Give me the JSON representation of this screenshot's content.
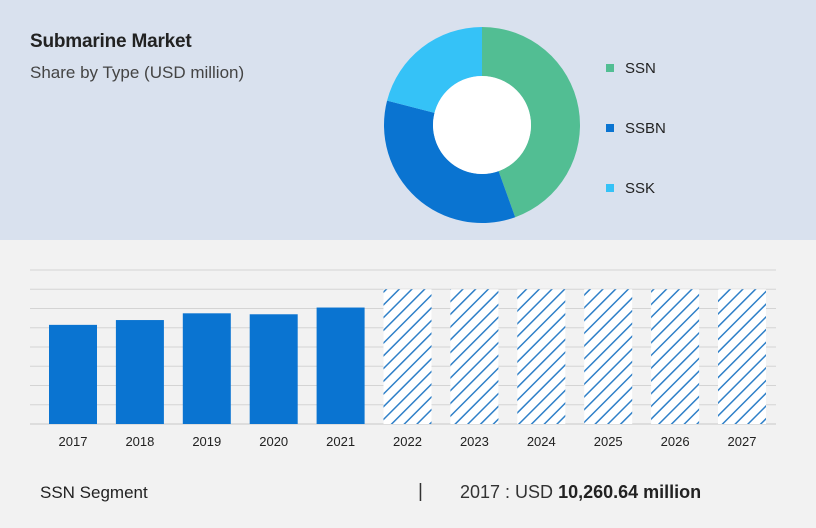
{
  "header": {
    "title": "Submarine Market",
    "subtitle": "Share by Type (USD million)"
  },
  "footer": {
    "segment_label": "SSN Segment",
    "separator": "|",
    "value_prefix": "2017 : USD",
    "value_amount": "10,260.64 million"
  },
  "colors": {
    "top_background": "#d9e1ee",
    "bottom_background": "#f2f2f2",
    "bar": "#0a74d1",
    "hatch": "#2f80c8"
  },
  "chart_data": [
    {
      "type": "pie",
      "subtype": "donut",
      "legend_position": "right",
      "series": [
        {
          "name": "SSN",
          "value": 44.5,
          "color": "#52be93"
        },
        {
          "name": "SSBN",
          "value": 34.5,
          "color": "#0a74d1"
        },
        {
          "name": "SSK",
          "value": 21.0,
          "color": "#35c2f7"
        }
      ]
    },
    {
      "type": "bar",
      "categories": [
        "2017",
        "2018",
        "2019",
        "2020",
        "2021",
        "2022",
        "2023",
        "2024",
        "2025",
        "2026",
        "2027"
      ],
      "values": [
        51.5,
        54,
        57.5,
        57,
        60.5,
        70,
        70,
        70,
        70,
        70,
        70
      ],
      "forecast": [
        false,
        false,
        false,
        false,
        false,
        true,
        true,
        true,
        true,
        true,
        true
      ],
      "ylim": [
        0,
        80
      ],
      "grid": true,
      "y_tick_labels_shown": false
    }
  ]
}
